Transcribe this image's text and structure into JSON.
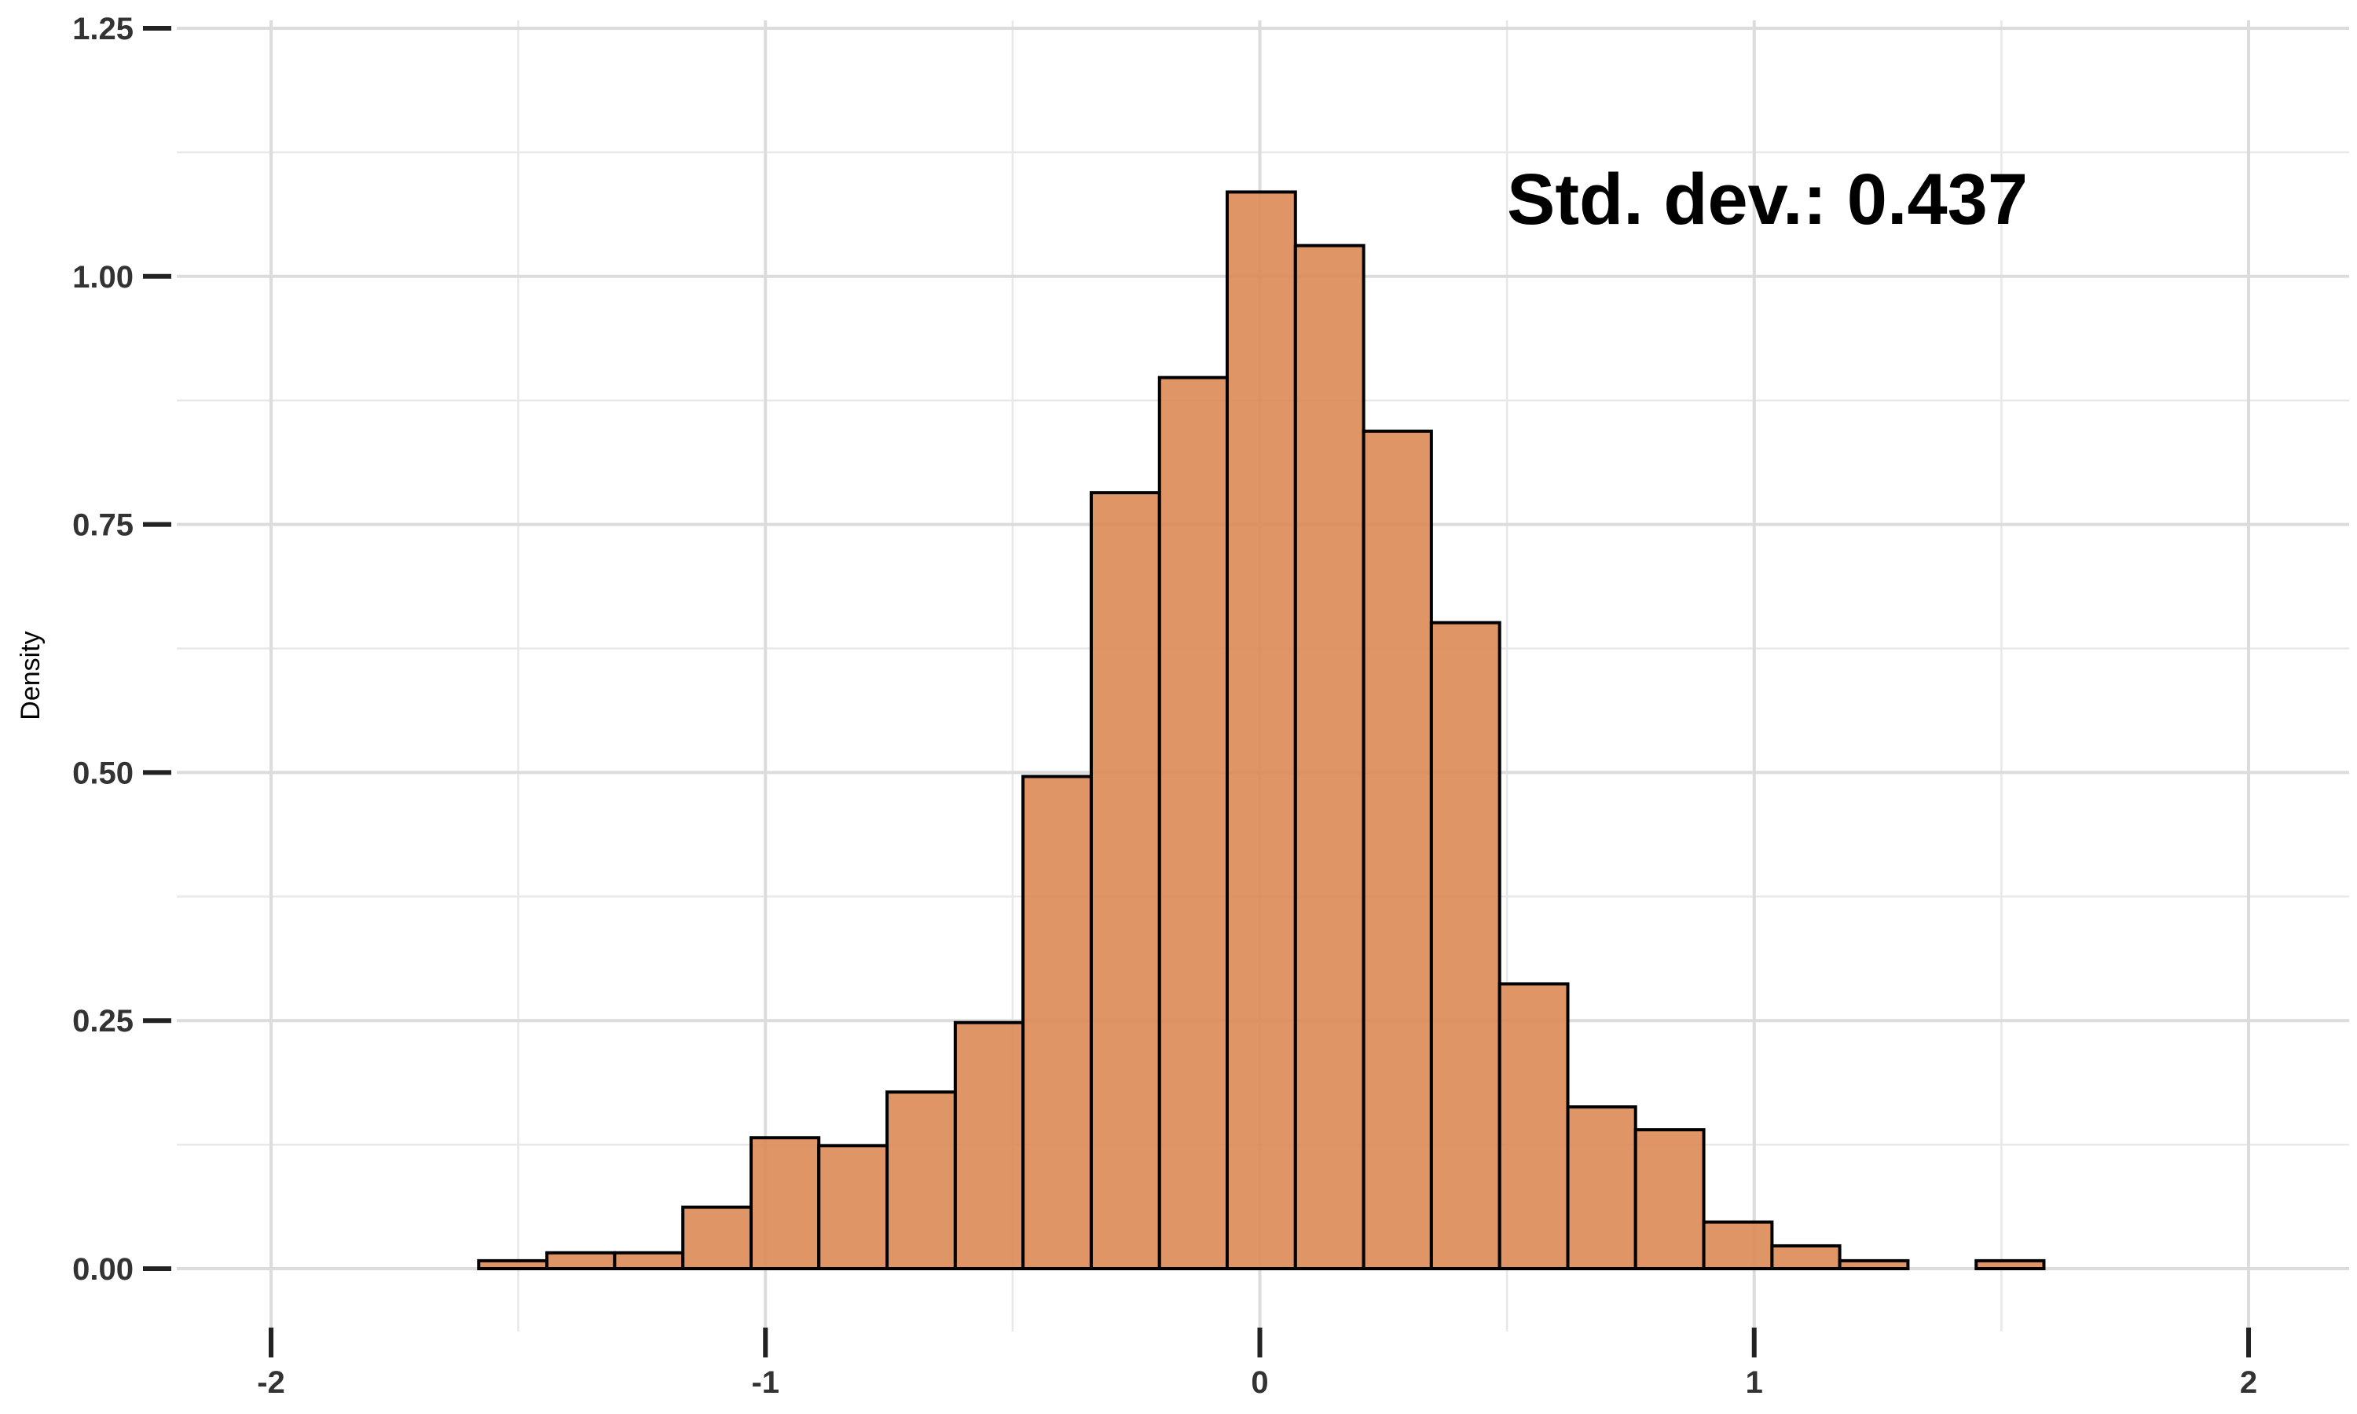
{
  "chart_data": {
    "type": "bar",
    "title": "",
    "xlabel": "",
    "ylabel": "Density",
    "annotation": "Std. dev.: 0.437",
    "xlim": [
      -2,
      2
    ],
    "ylim": [
      0,
      1.25
    ],
    "x_ticks": [
      -2,
      -1,
      0,
      1,
      2
    ],
    "x_tick_labels": [
      "-2",
      "-1",
      "0",
      "1",
      "2"
    ],
    "y_ticks": [
      0,
      0.25,
      0.5,
      0.75,
      1.0,
      1.25
    ],
    "y_tick_labels": [
      "0.00",
      "0.25",
      "0.50",
      "0.75",
      "1.00",
      "1.25"
    ],
    "grid": true,
    "bar_color": "#dc8a55",
    "bar_edge_color": "#000000",
    "bins": [
      {
        "x0": -1.993,
        "x1": -1.855,
        "density": 0.0
      },
      {
        "x0": -1.855,
        "x1": -1.718,
        "density": 0.0
      },
      {
        "x0": -1.718,
        "x1": -1.58,
        "density": 0.0
      },
      {
        "x0": -1.58,
        "x1": -1.442,
        "density": 0.008
      },
      {
        "x0": -1.442,
        "x1": -1.305,
        "density": 0.016
      },
      {
        "x0": -1.305,
        "x1": -1.167,
        "density": 0.016
      },
      {
        "x0": -1.167,
        "x1": -1.029,
        "density": 0.062
      },
      {
        "x0": -1.029,
        "x1": -0.892,
        "density": 0.132
      },
      {
        "x0": -0.892,
        "x1": -0.754,
        "density": 0.124
      },
      {
        "x0": -0.754,
        "x1": -0.616,
        "density": 0.178
      },
      {
        "x0": -0.616,
        "x1": -0.479,
        "density": 0.248
      },
      {
        "x0": -0.479,
        "x1": -0.341,
        "density": 0.496
      },
      {
        "x0": -0.341,
        "x1": -0.203,
        "density": 0.782
      },
      {
        "x0": -0.203,
        "x1": -0.066,
        "density": 0.898
      },
      {
        "x0": -0.066,
        "x1": 0.072,
        "density": 1.085
      },
      {
        "x0": 0.072,
        "x1": 0.21,
        "density": 1.031
      },
      {
        "x0": 0.21,
        "x1": 0.347,
        "density": 0.844
      },
      {
        "x0": 0.347,
        "x1": 0.485,
        "density": 0.651
      },
      {
        "x0": 0.485,
        "x1": 0.623,
        "density": 0.287
      },
      {
        "x0": 0.623,
        "x1": 0.76,
        "density": 0.163
      },
      {
        "x0": 0.76,
        "x1": 0.898,
        "density": 0.14
      },
      {
        "x0": 0.898,
        "x1": 1.036,
        "density": 0.047
      },
      {
        "x0": 1.036,
        "x1": 1.173,
        "density": 0.023
      },
      {
        "x0": 1.173,
        "x1": 1.311,
        "density": 0.008
      },
      {
        "x0": 1.311,
        "x1": 1.449,
        "density": 0.0
      },
      {
        "x0": 1.449,
        "x1": 1.586,
        "density": 0.008
      },
      {
        "x0": 1.586,
        "x1": 1.724,
        "density": 0.0
      },
      {
        "x0": 1.724,
        "x1": 1.862,
        "density": 0.0
      }
    ]
  }
}
